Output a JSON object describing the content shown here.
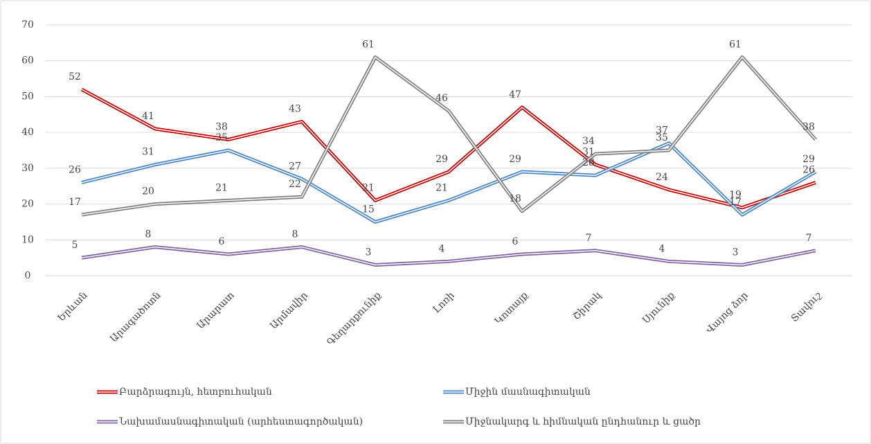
{
  "chart_data": {
    "type": "line",
    "categories": [
      "Երևան",
      "Արագածոտն",
      "Արարատ",
      "Արմավիր",
      "Գեղարքունիք",
      "Լոռի",
      "Կոտայք",
      "Շիրակ",
      "Սյունիք",
      "Վայոց ձոր",
      "Տավուշ"
    ],
    "series": [
      {
        "name": "Բարձրագույն, հետբուհական",
        "color": "#c00000",
        "values": [
          52,
          41,
          38,
          43,
          21,
          29,
          47,
          31,
          24,
          19,
          26
        ]
      },
      {
        "name": "Միջին մասնագիտական",
        "color": "#4a86c5",
        "values": [
          26,
          31,
          35,
          27,
          15,
          21,
          29,
          28,
          37,
          17,
          29
        ]
      },
      {
        "name": "Նախամասնագիտական (արհեստագործական)",
        "color": "#8064a2",
        "values": [
          5,
          8,
          6,
          8,
          3,
          4,
          6,
          7,
          4,
          3,
          7
        ]
      },
      {
        "name": "Միջնակարգ և հիմնական ընդհանուր և ցածր",
        "color": "#7f7f7f",
        "values": [
          17,
          20,
          21,
          22,
          61,
          46,
          18,
          34,
          35,
          61,
          38
        ]
      }
    ],
    "ylim": [
      0,
      70
    ],
    "yticks": [
      0,
      10,
      20,
      30,
      40,
      50,
      60,
      70
    ],
    "grid": true,
    "legend": "bottom"
  }
}
